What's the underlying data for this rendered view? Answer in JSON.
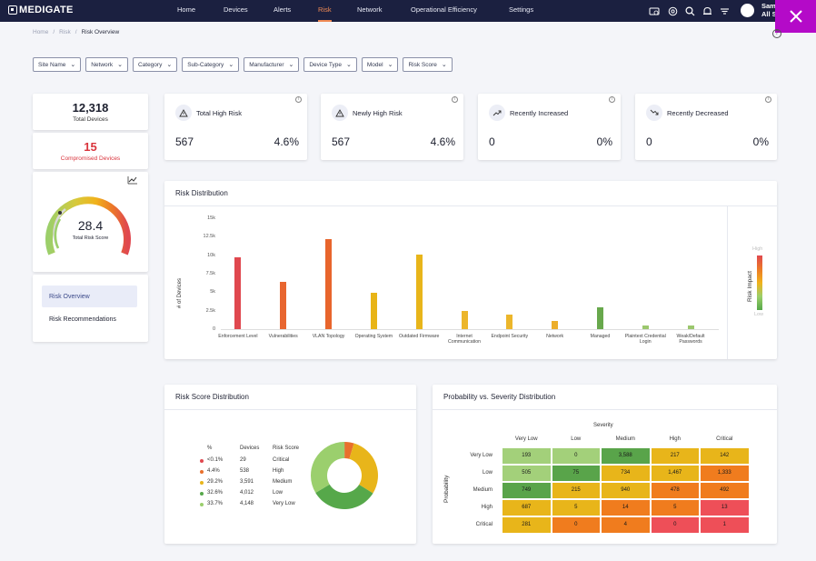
{
  "nav": {
    "logo": "MEDIGATE",
    "items": [
      {
        "label": "Home",
        "active": false
      },
      {
        "label": "Devices",
        "active": false
      },
      {
        "label": "Alerts",
        "active": false
      },
      {
        "label": "Risk",
        "active": true
      },
      {
        "label": "Network",
        "active": false
      },
      {
        "label": "Operational Efficiency",
        "active": false
      },
      {
        "label": "Settings",
        "active": false
      }
    ],
    "user": "Sam\nAll S"
  },
  "breadcrumb": {
    "home": "Home",
    "sep": "/",
    "risk": "Risk",
    "current": "Risk Overview"
  },
  "filters": [
    "Site Name",
    "Network",
    "Category",
    "Sub-Category",
    "Manufacturer",
    "Device Type",
    "Model",
    "Risk Score"
  ],
  "summary": {
    "total_devices": "12,318",
    "total_devices_label": "Total Devices",
    "compromised": "15",
    "compromised_label": "Compromised Devices",
    "risk_score": "28.4",
    "risk_score_label": "Total Risk Score"
  },
  "left_menu": {
    "overview": "Risk Overview",
    "recommendations": "Risk Recommendations"
  },
  "kpis": [
    {
      "title": "Total High Risk",
      "value": "567",
      "pct": "4.6%",
      "icon": "warning-icon"
    },
    {
      "title": "Newly High Risk",
      "value": "567",
      "pct": "4.6%",
      "icon": "warning-icon"
    },
    {
      "title": "Recently Increased",
      "value": "0",
      "pct": "0%",
      "icon": "trending-up-icon"
    },
    {
      "title": "Recently Decreased",
      "value": "0",
      "pct": "0%",
      "icon": "trending-down-icon"
    }
  ],
  "risk_distribution": {
    "title": "Risk Distribution",
    "impact_label": "Risk Impact",
    "impact_high": "High",
    "impact_low": "Low"
  },
  "chart_data": {
    "type": "bar",
    "title": "Risk Distribution",
    "ylabel": "# of Devices",
    "xlabel": "",
    "ylim": [
      0,
      15000
    ],
    "yticks": [
      "0",
      "2.5k",
      "5k",
      "7.5k",
      "10k",
      "12.5k",
      "15k"
    ],
    "categories": [
      "Enforcement Level",
      "Vulnerabilities",
      "VLAN Topology",
      "Operating System",
      "Outdated Firmware",
      "Internet Communication",
      "Endpoint Security",
      "Network",
      "Managed",
      "Plaintext Credential Login",
      "Weak/Default Passwords"
    ],
    "values": [
      9700,
      6400,
      12200,
      4900,
      10100,
      2400,
      2000,
      1100,
      2900,
      500,
      500
    ],
    "colors": [
      "#e0484f",
      "#e86630",
      "#e8652c",
      "#e8b417",
      "#e8b51a",
      "#ecb62b",
      "#ecb62b",
      "#ecae2b",
      "#68a84c",
      "#9bc76d",
      "#9bc76d"
    ]
  },
  "risk_score_distribution": {
    "title": "Risk Score Distribution",
    "headers": {
      "pct": "%",
      "devices": "Devices",
      "score": "Risk Score"
    },
    "rows": [
      {
        "pct": "<0.1%",
        "devices": "29",
        "score": "Critical",
        "color": "#e0484f",
        "value": 0.1
      },
      {
        "pct": "4.4%",
        "devices": "538",
        "score": "High",
        "color": "#e8702c",
        "value": 4.4
      },
      {
        "pct": "29.2%",
        "devices": "3,591",
        "score": "Medium",
        "color": "#e8b51a",
        "value": 29.2
      },
      {
        "pct": "32.6%",
        "devices": "4,012",
        "score": "Low",
        "color": "#56a84a",
        "value": 32.6
      },
      {
        "pct": "33.7%",
        "devices": "4,148",
        "score": "Very Low",
        "color": "#9bcf6d",
        "value": 33.7
      }
    ]
  },
  "prob_severity": {
    "title": "Probability vs. Severity Distribution",
    "x_title": "Severity",
    "y_title": "Probability",
    "cols": [
      "Very Low",
      "Low",
      "Medium",
      "High",
      "Critical"
    ],
    "rows": [
      "Very Low",
      "Low",
      "Medium",
      "High",
      "Critical"
    ],
    "cells": [
      [
        {
          "v": "193",
          "c": "#a3d07a"
        },
        {
          "v": "0",
          "c": "#a3d07a"
        },
        {
          "v": "3,588",
          "c": "#59a44a"
        },
        {
          "v": "217",
          "c": "#e8b51a"
        },
        {
          "v": "142",
          "c": "#e8b51a"
        }
      ],
      [
        {
          "v": "505",
          "c": "#a3d07a"
        },
        {
          "v": "75",
          "c": "#59a44a"
        },
        {
          "v": "734",
          "c": "#e8b51a"
        },
        {
          "v": "1,467",
          "c": "#e8b51a"
        },
        {
          "v": "1,333",
          "c": "#f07c1e"
        }
      ],
      [
        {
          "v": "749",
          "c": "#59a44a"
        },
        {
          "v": "215",
          "c": "#e8b51a"
        },
        {
          "v": "940",
          "c": "#e8b51a"
        },
        {
          "v": "478",
          "c": "#f07c1e"
        },
        {
          "v": "492",
          "c": "#f07c1e"
        }
      ],
      [
        {
          "v": "687",
          "c": "#e8b51a"
        },
        {
          "v": "5",
          "c": "#e8b51a"
        },
        {
          "v": "14",
          "c": "#f07c1e"
        },
        {
          "v": "5",
          "c": "#f07c1e"
        },
        {
          "v": "13",
          "c": "#ee4f58"
        }
      ],
      [
        {
          "v": "281",
          "c": "#e8b51a"
        },
        {
          "v": "0",
          "c": "#f07c1e"
        },
        {
          "v": "4",
          "c": "#f07c1e"
        },
        {
          "v": "0",
          "c": "#ee4f58"
        },
        {
          "v": "1",
          "c": "#ee4f58"
        }
      ]
    ]
  }
}
